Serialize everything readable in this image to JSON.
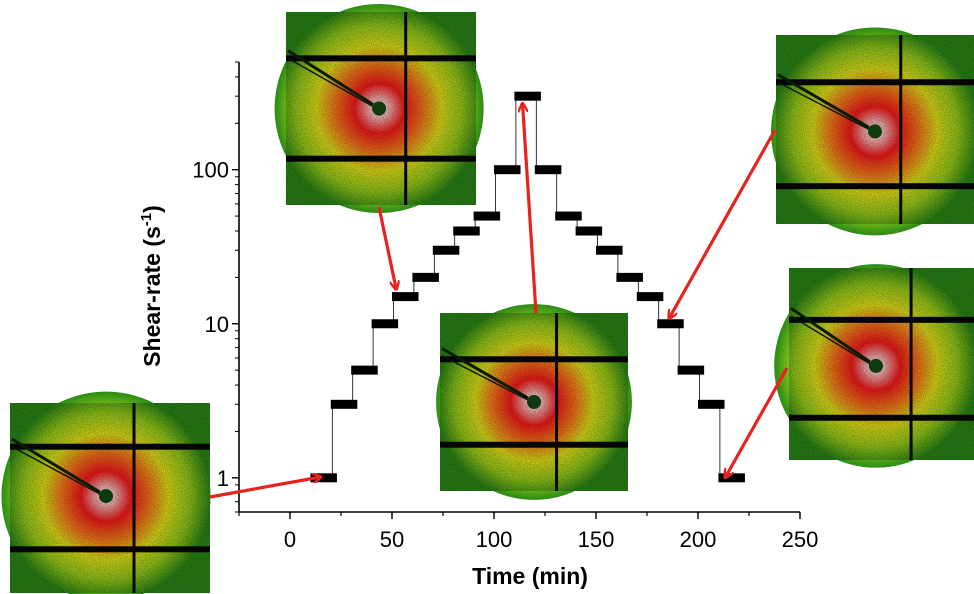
{
  "colors": {
    "step": "#000000",
    "arrow": "#e8221e",
    "pattern_background": "#2b8a16",
    "pattern_halo": "#e8e81a",
    "pattern_core": "#ff1a1a"
  },
  "chart_data": {
    "type": "line",
    "title": "",
    "xlabel": "Time (min)",
    "ylabel": "Shear-rate (s",
    "ylabel_superscript": "-1",
    "ylabel_close": ")",
    "x_scale": "linear",
    "y_scale": "log",
    "xlim": [
      -25,
      250
    ],
    "ylim": [
      0.6,
      500
    ],
    "x_ticks": [
      0,
      50,
      100,
      150,
      200,
      250
    ],
    "y_ticks": [
      1,
      10,
      100
    ],
    "x_tick_labels": [
      "0",
      "50",
      "100",
      "150",
      "200",
      "250"
    ],
    "y_tick_labels": [
      "1",
      "10",
      "100"
    ],
    "grid": false,
    "legend": "none",
    "series": [
      {
        "steps": [
          {
            "x_start": 10,
            "x_end": 23,
            "y": 1
          },
          {
            "x_start": 20,
            "x_end": 33,
            "y": 3
          },
          {
            "x_start": 30,
            "x_end": 43,
            "y": 5
          },
          {
            "x_start": 40,
            "x_end": 53,
            "y": 10
          },
          {
            "x_start": 50,
            "x_end": 63,
            "y": 15
          },
          {
            "x_start": 60,
            "x_end": 73,
            "y": 20
          },
          {
            "x_start": 70,
            "x_end": 83,
            "y": 30
          },
          {
            "x_start": 80,
            "x_end": 93,
            "y": 40
          },
          {
            "x_start": 90,
            "x_end": 103,
            "y": 50
          },
          {
            "x_start": 100,
            "x_end": 113,
            "y": 100
          },
          {
            "x_start": 110,
            "x_end": 123,
            "y": 300
          },
          {
            "x_start": 120,
            "x_end": 133,
            "y": 100
          },
          {
            "x_start": 130,
            "x_end": 143,
            "y": 50
          },
          {
            "x_start": 140,
            "x_end": 153,
            "y": 40
          },
          {
            "x_start": 150,
            "x_end": 163,
            "y": 30
          },
          {
            "x_start": 160,
            "x_end": 173,
            "y": 20
          },
          {
            "x_start": 170,
            "x_end": 183,
            "y": 15
          },
          {
            "x_start": 180,
            "x_end": 193,
            "y": 10
          },
          {
            "x_start": 190,
            "x_end": 203,
            "y": 5
          },
          {
            "x_start": 200,
            "x_end": 213,
            "y": 3
          },
          {
            "x_start": 210,
            "x_end": 223,
            "y": 1
          }
        ]
      }
    ],
    "inset_images": [
      {
        "depicts": "2D scattering pattern",
        "points_to": {
          "x": 10,
          "y": 1
        }
      },
      {
        "depicts": "2D scattering pattern",
        "points_to": {
          "x": 52,
          "y": 15
        }
      },
      {
        "depicts": "2D scattering pattern",
        "points_to": {
          "x": 114,
          "y": 300
        }
      },
      {
        "depicts": "2D scattering pattern",
        "points_to": {
          "x": 186,
          "y": 10
        }
      },
      {
        "depicts": "2D scattering pattern",
        "points_to": {
          "x": 213,
          "y": 1
        }
      }
    ]
  }
}
